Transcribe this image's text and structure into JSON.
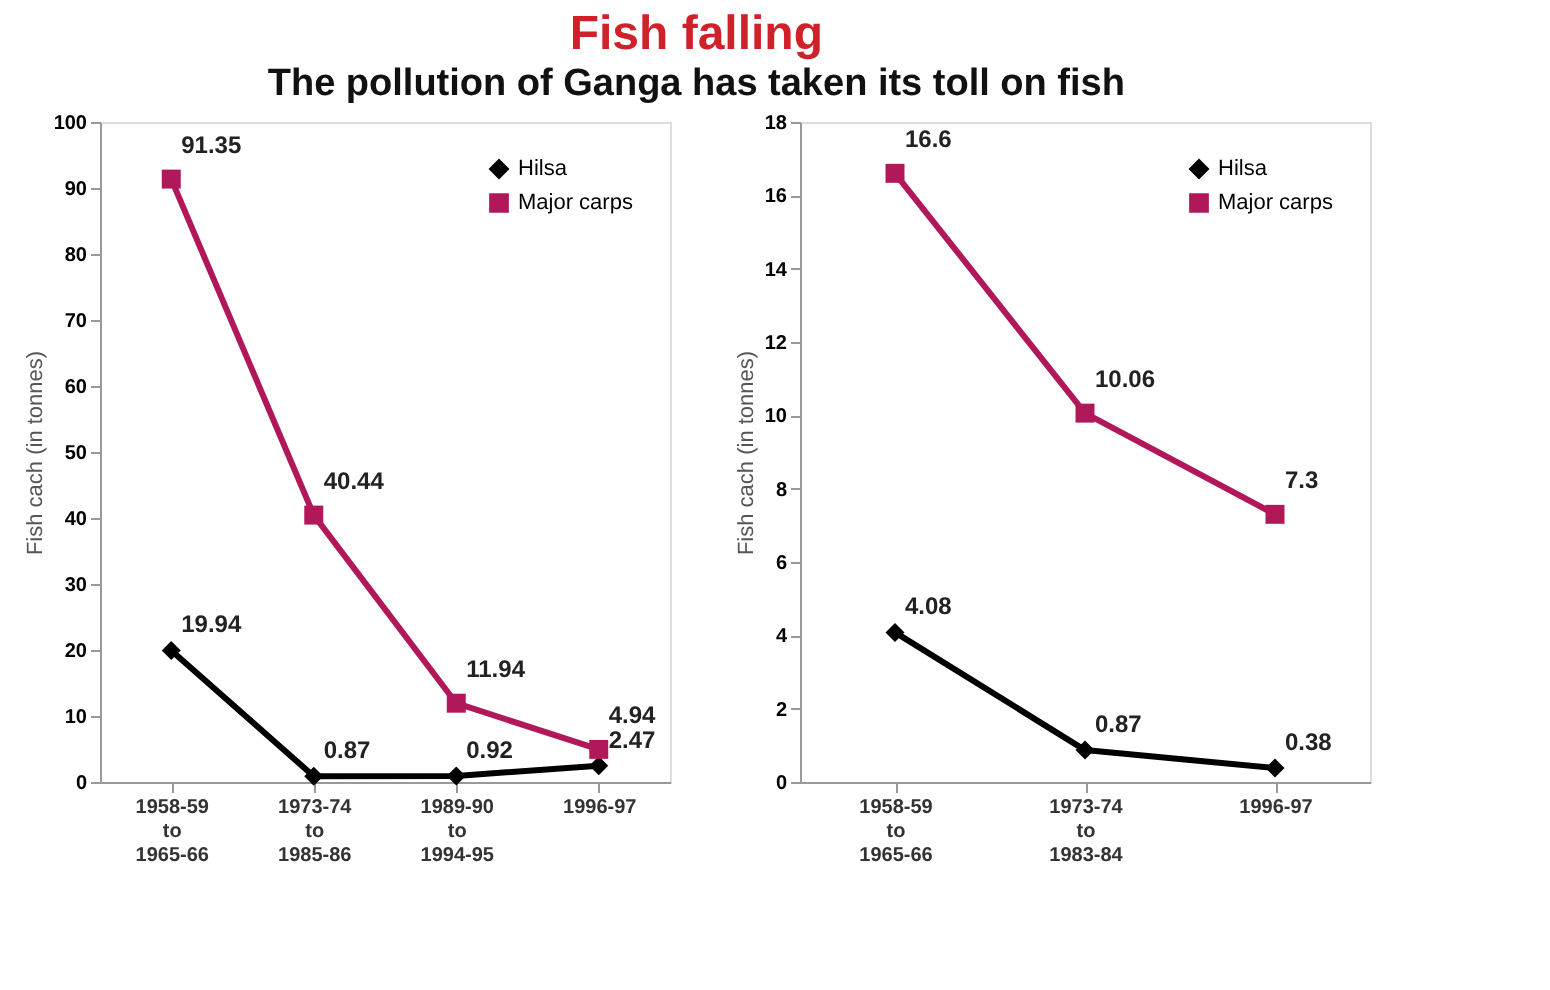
{
  "chart_data": [
    {
      "type": "line",
      "title": "Fish falling",
      "subtitle": "The pollution of Ganga has taken its toll on fish",
      "ylabel": "Fish cach (in tonnes)",
      "categories": [
        "1958-59\nto\n1965-66",
        "1973-74\nto\n1985-86",
        "1989-90\nto\n1994-95",
        "1996-97"
      ],
      "series": [
        {
          "name": "Hilsa",
          "color": "#000000",
          "marker": "diamond",
          "values": [
            19.94,
            0.87,
            0.92,
            2.47
          ]
        },
        {
          "name": "Major carps",
          "color": "#b0185a",
          "marker": "square",
          "values": [
            91.35,
            40.44,
            11.94,
            4.94
          ]
        }
      ],
      "ylim": [
        0,
        100
      ],
      "yticks": [
        0,
        10,
        20,
        30,
        40,
        50,
        60,
        70,
        80,
        90,
        100
      ],
      "data_labels": true,
      "grid": false,
      "legend": "top right"
    },
    {
      "type": "line",
      "ylabel": "Fish cach (in tonnes)",
      "categories": [
        "1958-59\nto\n1965-66",
        "1973-74\nto\n1983-84",
        "1996-97"
      ],
      "series": [
        {
          "name": "Hilsa",
          "color": "#000000",
          "marker": "diamond",
          "values": [
            4.08,
            0.87,
            0.38
          ]
        },
        {
          "name": "Major carps",
          "color": "#b0185a",
          "marker": "square",
          "values": [
            16.6,
            10.06,
            7.3
          ]
        }
      ],
      "ylim": [
        0,
        18
      ],
      "yticks": [
        0,
        2,
        4,
        6,
        8,
        10,
        12,
        14,
        16,
        18
      ],
      "data_labels": true,
      "grid": false,
      "legend": "top right"
    }
  ]
}
